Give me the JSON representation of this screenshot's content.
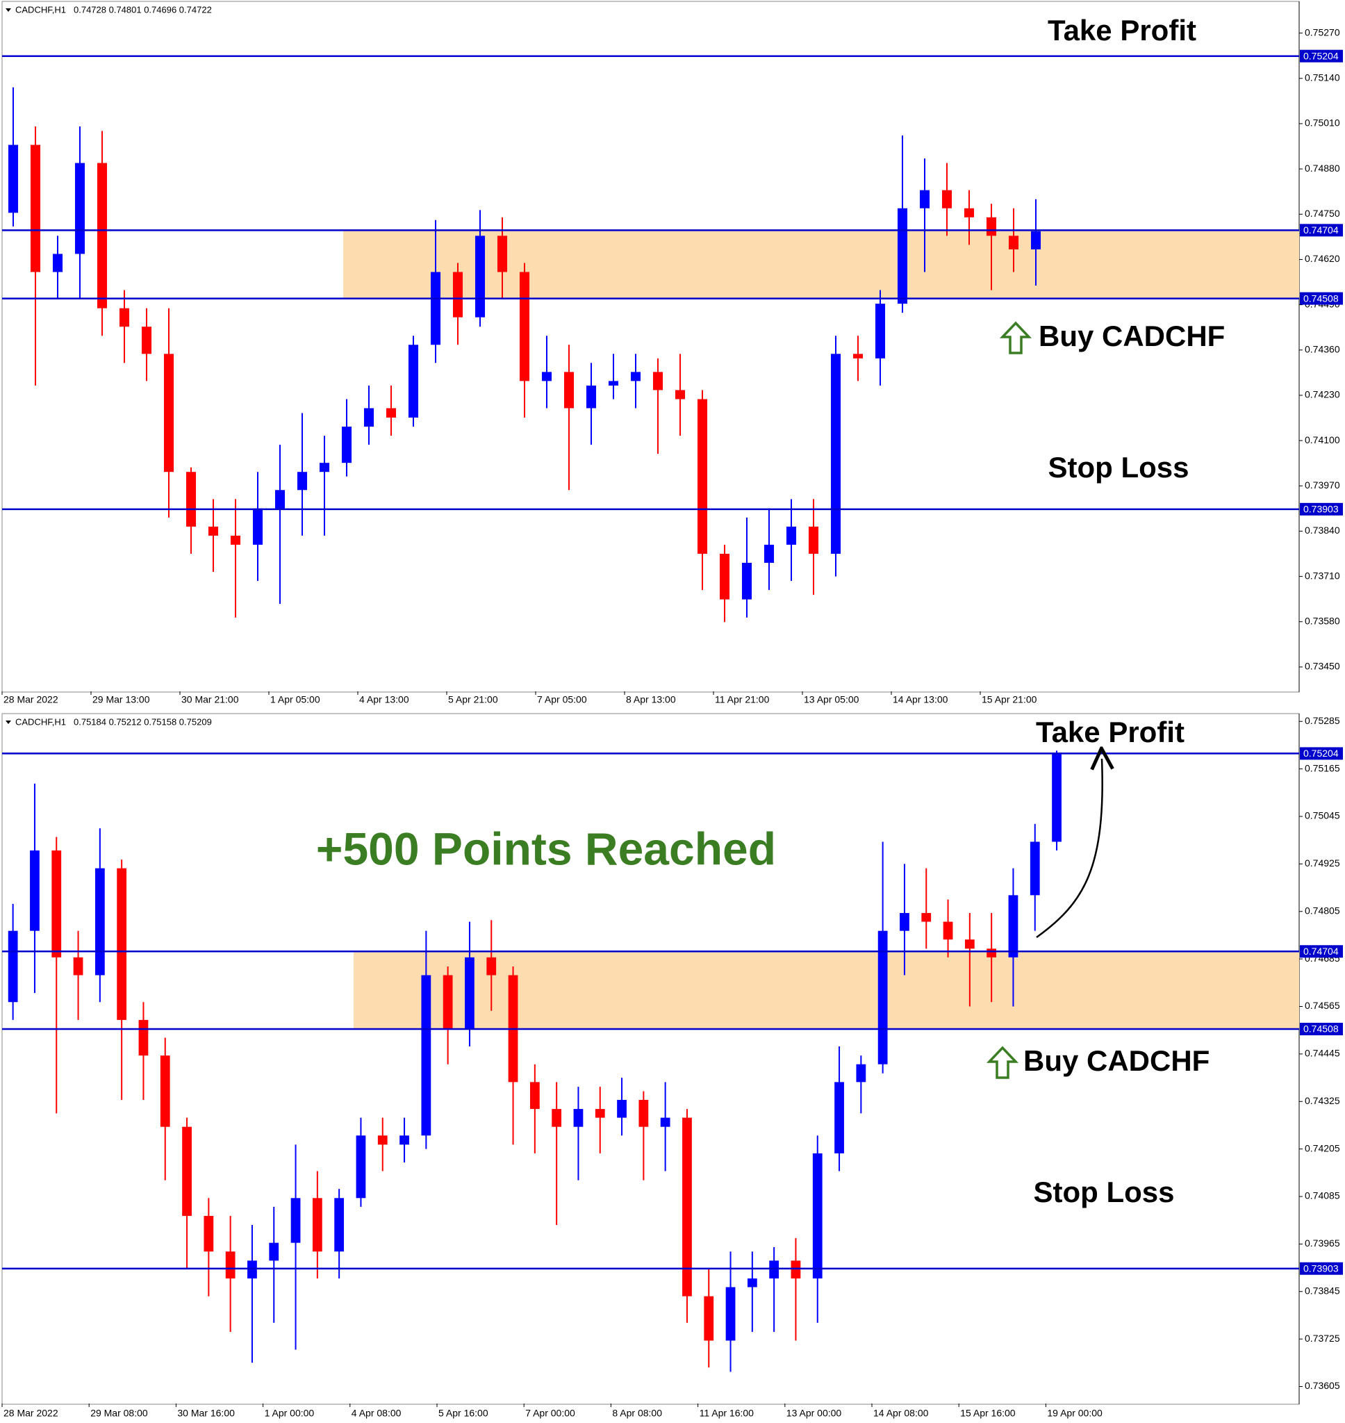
{
  "chart_data": [
    {
      "type": "candlestick",
      "symbol": "CADCHF,H1",
      "quote": "0.74728 0.74801 0.74696 0.74722",
      "categories": [
        "28 Mar 2022",
        null,
        null,
        null,
        "29 Mar 13:00",
        null,
        null,
        null,
        "30 Mar 21:00",
        null,
        null,
        null,
        "1 Apr 05:00",
        null,
        null,
        null,
        "4 Apr 13:00",
        null,
        null,
        null,
        "5 Apr 21:00",
        null,
        null,
        null,
        "7 Apr 05:00",
        null,
        null,
        null,
        "8 Apr 13:00",
        null,
        null,
        null,
        "11 Apr 21:00",
        null,
        null,
        null,
        "13 Apr 05:00",
        null,
        null,
        null,
        "14 Apr 13:00",
        null,
        null,
        null,
        "15 Apr 21:00",
        null,
        null
      ],
      "open": [
        0.74754,
        0.74949,
        0.74584,
        0.74636,
        0.74897,
        0.7448,
        0.74427,
        0.74349,
        0.7401,
        0.73853,
        0.73827,
        0.73801,
        0.73905,
        0.73958,
        0.7401,
        0.74036,
        0.7414,
        0.74193,
        0.74166,
        0.74375,
        0.74584,
        0.74454,
        0.74688,
        0.74584,
        0.74271,
        0.74297,
        0.74193,
        0.74258,
        0.74271,
        0.74297,
        0.74245,
        0.74219,
        0.73775,
        0.73644,
        0.73749,
        0.73801,
        0.73853,
        0.73775,
        0.74349,
        0.74336,
        0.74493,
        0.74767,
        0.74819,
        0.74767,
        0.74741,
        0.74688,
        0.74649
      ],
      "high": [
        0.75114,
        0.75002,
        0.74688,
        0.75002,
        0.74989,
        0.74532,
        0.7448,
        0.7448,
        0.74023,
        0.73932,
        0.73932,
        0.7401,
        0.74088,
        0.74179,
        0.74114,
        0.74219,
        0.74258,
        0.74258,
        0.74401,
        0.74733,
        0.7461,
        0.74762,
        0.74741,
        0.7461,
        0.74401,
        0.74375,
        0.74323,
        0.74349,
        0.74349,
        0.74336,
        0.74349,
        0.74245,
        0.73801,
        0.73879,
        0.73905,
        0.73932,
        0.73932,
        0.74401,
        0.74401,
        0.74532,
        0.74976,
        0.7491,
        0.74897,
        0.74819,
        0.7478,
        0.74767,
        0.74793
      ],
      "low": [
        0.74715,
        0.74258,
        0.74506,
        0.74506,
        0.74401,
        0.74323,
        0.74271,
        0.73879,
        0.73775,
        0.73723,
        0.73592,
        0.73697,
        0.73631,
        0.73827,
        0.73827,
        0.73997,
        0.74088,
        0.74114,
        0.7414,
        0.74323,
        0.74375,
        0.74427,
        0.74506,
        0.74166,
        0.74193,
        0.73958,
        0.74088,
        0.74219,
        0.74193,
        0.74062,
        0.74114,
        0.73671,
        0.73579,
        0.73592,
        0.73671,
        0.73697,
        0.73657,
        0.7371,
        0.74271,
        0.74258,
        0.74467,
        0.74584,
        0.74688,
        0.74662,
        0.74532,
        0.74584,
        0.74545
      ],
      "close": [
        0.74949,
        0.74584,
        0.74636,
        0.74897,
        0.7448,
        0.74427,
        0.74349,
        0.7401,
        0.73853,
        0.73827,
        0.73801,
        0.73905,
        0.73958,
        0.7401,
        0.74036,
        0.7414,
        0.74193,
        0.74166,
        0.74375,
        0.74584,
        0.74454,
        0.74688,
        0.74584,
        0.74271,
        0.74297,
        0.74193,
        0.74258,
        0.74271,
        0.74297,
        0.74245,
        0.74219,
        0.73775,
        0.73644,
        0.73749,
        0.73801,
        0.73853,
        0.73775,
        0.74349,
        0.74336,
        0.74493,
        0.74767,
        0.74819,
        0.74767,
        0.74741,
        0.74688,
        0.74649,
        0.74701
      ],
      "up_color": "#0000ff",
      "down_color": "#ff0000",
      "ylim": [
        0.7338,
        0.75359
      ],
      "yticks": [
        {
          "value": 0.7527,
          "label": "0.75270"
        },
        {
          "value": 0.7514,
          "label": "0.75140"
        },
        {
          "value": 0.7501,
          "label": "0.75010"
        },
        {
          "value": 0.7488,
          "label": "0.74880"
        },
        {
          "value": 0.7475,
          "label": "0.74750"
        },
        {
          "value": 0.7462,
          "label": "0.74620"
        },
        {
          "value": 0.7449,
          "label": "0.74490"
        },
        {
          "value": 0.7436,
          "label": "0.74360"
        },
        {
          "value": 0.7423,
          "label": "0.74230"
        },
        {
          "value": 0.741,
          "label": "0.74100"
        },
        {
          "value": 0.7397,
          "label": "0.73970"
        },
        {
          "value": 0.7384,
          "label": "0.73840"
        },
        {
          "value": 0.7371,
          "label": "0.73710"
        },
        {
          "value": 0.7358,
          "label": "0.73580"
        },
        {
          "value": 0.7345,
          "label": "0.73450"
        }
      ],
      "levels": [
        0.75204,
        0.74704,
        0.74508,
        0.73903
      ],
      "level_color": "#0000cc",
      "zone": [
        0.74508,
        0.74704
      ],
      "zone_color": "#fddcb0",
      "annotations": [
        "Take Profit",
        "Buy CADCHF",
        "Stop Loss"
      ]
    },
    {
      "type": "candlestick",
      "symbol": "CADCHF,H1",
      "quote": "0.75184 0.75212 0.75158 0.75209",
      "categories": [
        "28 Mar 2022",
        null,
        null,
        null,
        "29 Mar 08:00",
        null,
        null,
        null,
        "30 Mar 16:00",
        null,
        null,
        null,
        "1 Apr 00:00",
        null,
        null,
        null,
        "4 Apr 08:00",
        null,
        null,
        null,
        "5 Apr 16:00",
        null,
        null,
        null,
        "7 Apr 00:00",
        null,
        null,
        null,
        "8 Apr 08:00",
        null,
        null,
        null,
        "11 Apr 16:00",
        null,
        null,
        null,
        "13 Apr 00:00",
        null,
        null,
        null,
        "14 Apr 08:00",
        null,
        null,
        null,
        "15 Apr 16:00",
        null,
        null,
        null,
        "19 Apr 00:00"
      ],
      "open": [
        0.74576,
        0.74756,
        0.74959,
        0.74689,
        0.74644,
        0.74914,
        0.74531,
        0.74441,
        0.74261,
        0.74036,
        0.73946,
        0.73878,
        0.73923,
        0.73968,
        0.74081,
        0.73946,
        0.74081,
        0.74239,
        0.74216,
        0.74239,
        0.74644,
        0.74509,
        0.74689,
        0.74644,
        0.74374,
        0.74306,
        0.74261,
        0.74306,
        0.74284,
        0.74329,
        0.74261,
        0.74284,
        0.73833,
        0.73721,
        0.73856,
        0.73878,
        0.73923,
        0.73878,
        0.74194,
        0.74374,
        0.74419,
        0.74756,
        0.74801,
        0.74779,
        0.74734,
        0.74711,
        0.74689,
        0.74846,
        0.74981
      ],
      "high": [
        0.74824,
        0.75128,
        0.74993,
        0.74756,
        0.75015,
        0.74936,
        0.74576,
        0.74486,
        0.74284,
        0.74081,
        0.74036,
        0.74013,
        0.74059,
        0.74216,
        0.74149,
        0.74104,
        0.74284,
        0.74284,
        0.74284,
        0.74756,
        0.74666,
        0.74779,
        0.74783,
        0.74666,
        0.74419,
        0.74374,
        0.74362,
        0.74362,
        0.74385,
        0.74351,
        0.74374,
        0.74306,
        0.73901,
        0.73946,
        0.73946,
        0.73957,
        0.7398,
        0.74239,
        0.74464,
        0.74441,
        0.74981,
        0.74925,
        0.74914,
        0.74835,
        0.74801,
        0.74801,
        0.74914,
        0.75026,
        0.75211
      ],
      "low": [
        0.74531,
        0.74599,
        0.74295,
        0.74531,
        0.74576,
        0.74329,
        0.74329,
        0.74126,
        0.73901,
        0.73833,
        0.73743,
        0.73665,
        0.73766,
        0.73698,
        0.73878,
        0.73878,
        0.74059,
        0.74149,
        0.74171,
        0.74205,
        0.74419,
        0.74464,
        0.74554,
        0.74216,
        0.74194,
        0.74013,
        0.74126,
        0.74194,
        0.74239,
        0.74126,
        0.74149,
        0.73766,
        0.73653,
        0.73642,
        0.73743,
        0.73743,
        0.73721,
        0.73766,
        0.74149,
        0.74295,
        0.74396,
        0.74644,
        0.74711,
        0.74689,
        0.74565,
        0.74576,
        0.74565,
        0.74756,
        0.74959
      ],
      "close": [
        0.74756,
        0.74959,
        0.74689,
        0.74644,
        0.74914,
        0.74531,
        0.74441,
        0.74261,
        0.74036,
        0.73946,
        0.73878,
        0.73923,
        0.73968,
        0.74081,
        0.73946,
        0.74081,
        0.74239,
        0.74216,
        0.74239,
        0.74644,
        0.74509,
        0.74689,
        0.74644,
        0.74374,
        0.74306,
        0.74261,
        0.74306,
        0.74284,
        0.74329,
        0.74261,
        0.74284,
        0.73833,
        0.73721,
        0.73856,
        0.73878,
        0.73923,
        0.73878,
        0.74194,
        0.74374,
        0.74419,
        0.74756,
        0.74801,
        0.74779,
        0.74734,
        0.74711,
        0.74689,
        0.74846,
        0.74981,
        0.75206
      ],
      "up_color": "#0000ff",
      "down_color": "#ff0000",
      "ylim": [
        0.73562,
        0.75303
      ],
      "yticks": [
        0.75285,
        0.75165,
        0.75045,
        0.74925,
        0.74805,
        0.74685,
        0.74565,
        0.74445,
        0.74325,
        0.74205,
        0.74085,
        0.73965,
        0.73845,
        0.73725,
        0.73605
      ],
      "levels": [
        0.75204,
        0.74704,
        0.74508,
        0.73903
      ],
      "level_color": "#0000cc",
      "zone": [
        0.74508,
        0.74704
      ],
      "zone_color": "#fddcb0",
      "annotations": [
        "Take Profit",
        "Buy CADCHF",
        "Stop Loss",
        "+500 Points Reached"
      ]
    }
  ]
}
